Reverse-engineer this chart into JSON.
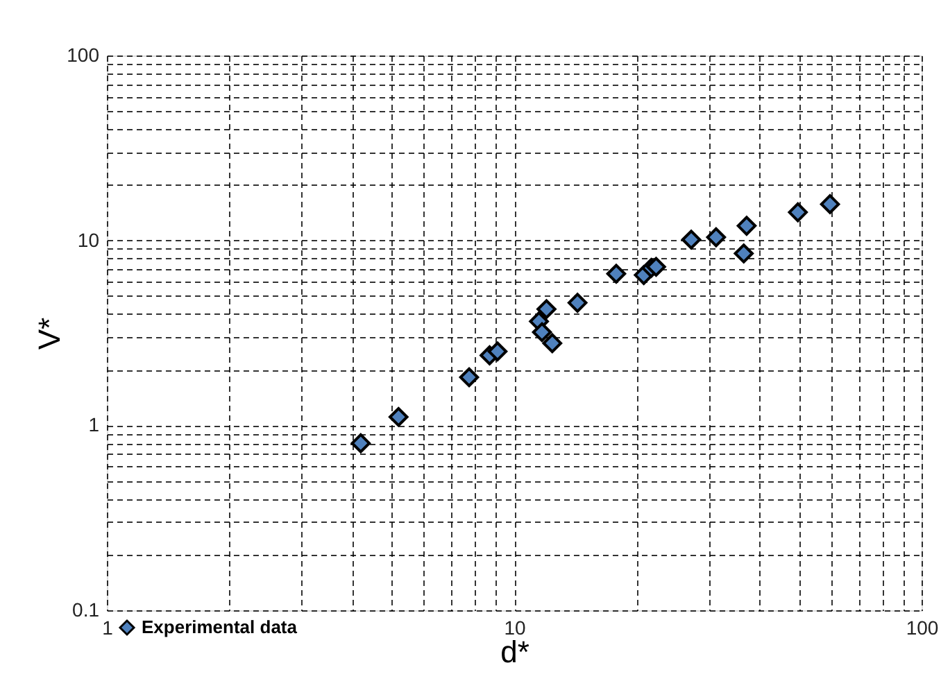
{
  "chart_data": {
    "type": "scatter",
    "xlabel": "d*",
    "ylabel": "V*",
    "log": "xy",
    "grid": true,
    "legend": "bottom left",
    "marker": "diamond",
    "x": [
      4.2,
      5.2,
      7.75,
      8.7,
      9.1,
      11.5,
      11.7,
      12.0,
      12.4,
      14.3,
      17.8,
      20.8,
      21.7,
      22.3,
      27.2,
      31.3,
      36.6,
      37.2,
      49.7,
      59.6
    ],
    "series": [
      {
        "name": "Experimental data",
        "color": "#4f81bd",
        "values": [
          0.8,
          1.11,
          1.82,
          2.39,
          2.51,
          3.65,
          3.19,
          4.25,
          2.78,
          4.6,
          6.6,
          6.5,
          7.1,
          7.2,
          10.1,
          10.4,
          8.5,
          12.0,
          14.2,
          15.7
        ]
      }
    ],
    "xlim": [
      1,
      100
    ],
    "ylim": [
      0.1,
      100
    ],
    "xticks": [
      1,
      {
        "value": 2,
        "label": null
      },
      {
        "value": 3,
        "label": null
      },
      {
        "value": 4,
        "label": null
      },
      {
        "value": 5,
        "label": null
      },
      {
        "value": 6,
        "label": null
      },
      {
        "value": 7,
        "label": null
      },
      {
        "value": 8,
        "label": null
      },
      {
        "value": 9,
        "label": null
      },
      10,
      {
        "value": 20,
        "label": null
      },
      {
        "value": 30,
        "label": null
      },
      {
        "value": 40,
        "label": null
      },
      {
        "value": 50,
        "label": null
      },
      {
        "value": 60,
        "label": null
      },
      {
        "value": 70,
        "label": null
      },
      {
        "value": 80,
        "label": null
      },
      {
        "value": 90,
        "label": null
      },
      100
    ],
    "yticks": [
      0.1,
      {
        "value": 0.2,
        "label": null
      },
      {
        "value": 0.3,
        "label": null
      },
      {
        "value": 0.4,
        "label": null
      },
      {
        "value": 0.5,
        "label": null
      },
      {
        "value": 0.6,
        "label": null
      },
      {
        "value": 0.7,
        "label": null
      },
      {
        "value": 0.8,
        "label": null
      },
      {
        "value": 0.9,
        "label": null
      },
      1,
      {
        "value": 2,
        "label": null
      },
      {
        "value": 3,
        "label": null
      },
      {
        "value": 4,
        "label": null
      },
      {
        "value": 5,
        "label": null
      },
      {
        "value": 6,
        "label": null
      },
      {
        "value": 7,
        "label": null
      },
      {
        "value": 8,
        "label": null
      },
      {
        "value": 9,
        "label": null
      },
      10,
      {
        "value": 20,
        "label": null
      },
      {
        "value": 30,
        "label": null
      },
      {
        "value": 40,
        "label": null
      },
      {
        "value": 50,
        "label": null
      },
      {
        "value": 60,
        "label": null
      },
      {
        "value": 70,
        "label": null
      },
      {
        "value": 80,
        "label": null
      },
      {
        "value": 90,
        "label": null
      },
      100
    ]
  }
}
